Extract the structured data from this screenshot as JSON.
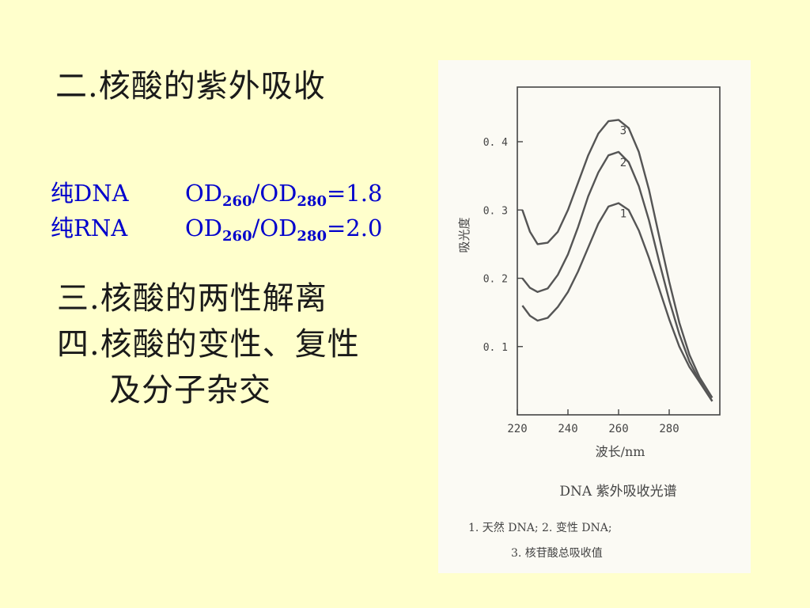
{
  "slide": {
    "title": "二.核酸的紫外吸收",
    "ratios": [
      {
        "name": "纯DNA",
        "od_a": "OD",
        "sub_a": "260",
        "sep": "/OD",
        "sub_b": "280",
        "eq": "=1.8"
      },
      {
        "name": "纯RNA",
        "od_a": "OD",
        "sub_a": "260",
        "sep": "/OD",
        "sub_b": "280",
        "eq": "=2.0"
      }
    ],
    "sections": [
      "三.核酸的两性解离",
      "四.核酸的变性、复性",
      "及分子杂交"
    ]
  },
  "figure": {
    "caption_title": "DNA 紫外吸收光谱",
    "caption_line1": "1. 天然 DNA;  2. 变性 DNA;",
    "caption_line2": "3. 核苷酸总吸收值"
  },
  "chart_data": {
    "type": "line",
    "title": "DNA 紫外吸收光谱",
    "xlabel": "波长/nm",
    "ylabel": "吸光度",
    "xlim": [
      220,
      300
    ],
    "ylim": [
      0.0,
      0.48
    ],
    "xticks": [
      220,
      240,
      260,
      280
    ],
    "yticks": [
      0.1,
      0.2,
      0.3,
      0.4
    ],
    "ytick_labels": [
      "0. 1",
      "0. 2",
      "0. 3",
      "0. 4"
    ],
    "grid": false,
    "series": [
      {
        "name": "1",
        "x": [
          222,
          225,
          228,
          232,
          236,
          240,
          244,
          248,
          252,
          256,
          260,
          264,
          268,
          272,
          276,
          280,
          284,
          288,
          292,
          297
        ],
        "y": [
          0.16,
          0.145,
          0.138,
          0.142,
          0.158,
          0.18,
          0.21,
          0.245,
          0.28,
          0.305,
          0.31,
          0.3,
          0.27,
          0.23,
          0.185,
          0.14,
          0.1,
          0.07,
          0.048,
          0.02
        ]
      },
      {
        "name": "2",
        "x": [
          222,
          225,
          228,
          232,
          236,
          240,
          244,
          248,
          252,
          256,
          260,
          264,
          268,
          272,
          276,
          280,
          284,
          288,
          292,
          297
        ],
        "y": [
          0.2,
          0.186,
          0.18,
          0.185,
          0.205,
          0.235,
          0.275,
          0.32,
          0.355,
          0.38,
          0.385,
          0.37,
          0.335,
          0.285,
          0.225,
          0.168,
          0.118,
          0.078,
          0.05,
          0.02
        ]
      },
      {
        "name": "3",
        "x": [
          222,
          225,
          228,
          232,
          236,
          240,
          244,
          248,
          252,
          256,
          260,
          264,
          268,
          272,
          276,
          280,
          284,
          288,
          292,
          297
        ],
        "y": [
          0.3,
          0.268,
          0.25,
          0.252,
          0.268,
          0.3,
          0.34,
          0.38,
          0.412,
          0.43,
          0.432,
          0.42,
          0.385,
          0.33,
          0.262,
          0.195,
          0.135,
          0.088,
          0.055,
          0.025
        ]
      }
    ],
    "curve_labels": [
      "1",
      "2",
      "3"
    ]
  },
  "colors": {
    "background": "#FFFFCC",
    "ratio_text": "#0000CC",
    "curve": "#555555"
  }
}
